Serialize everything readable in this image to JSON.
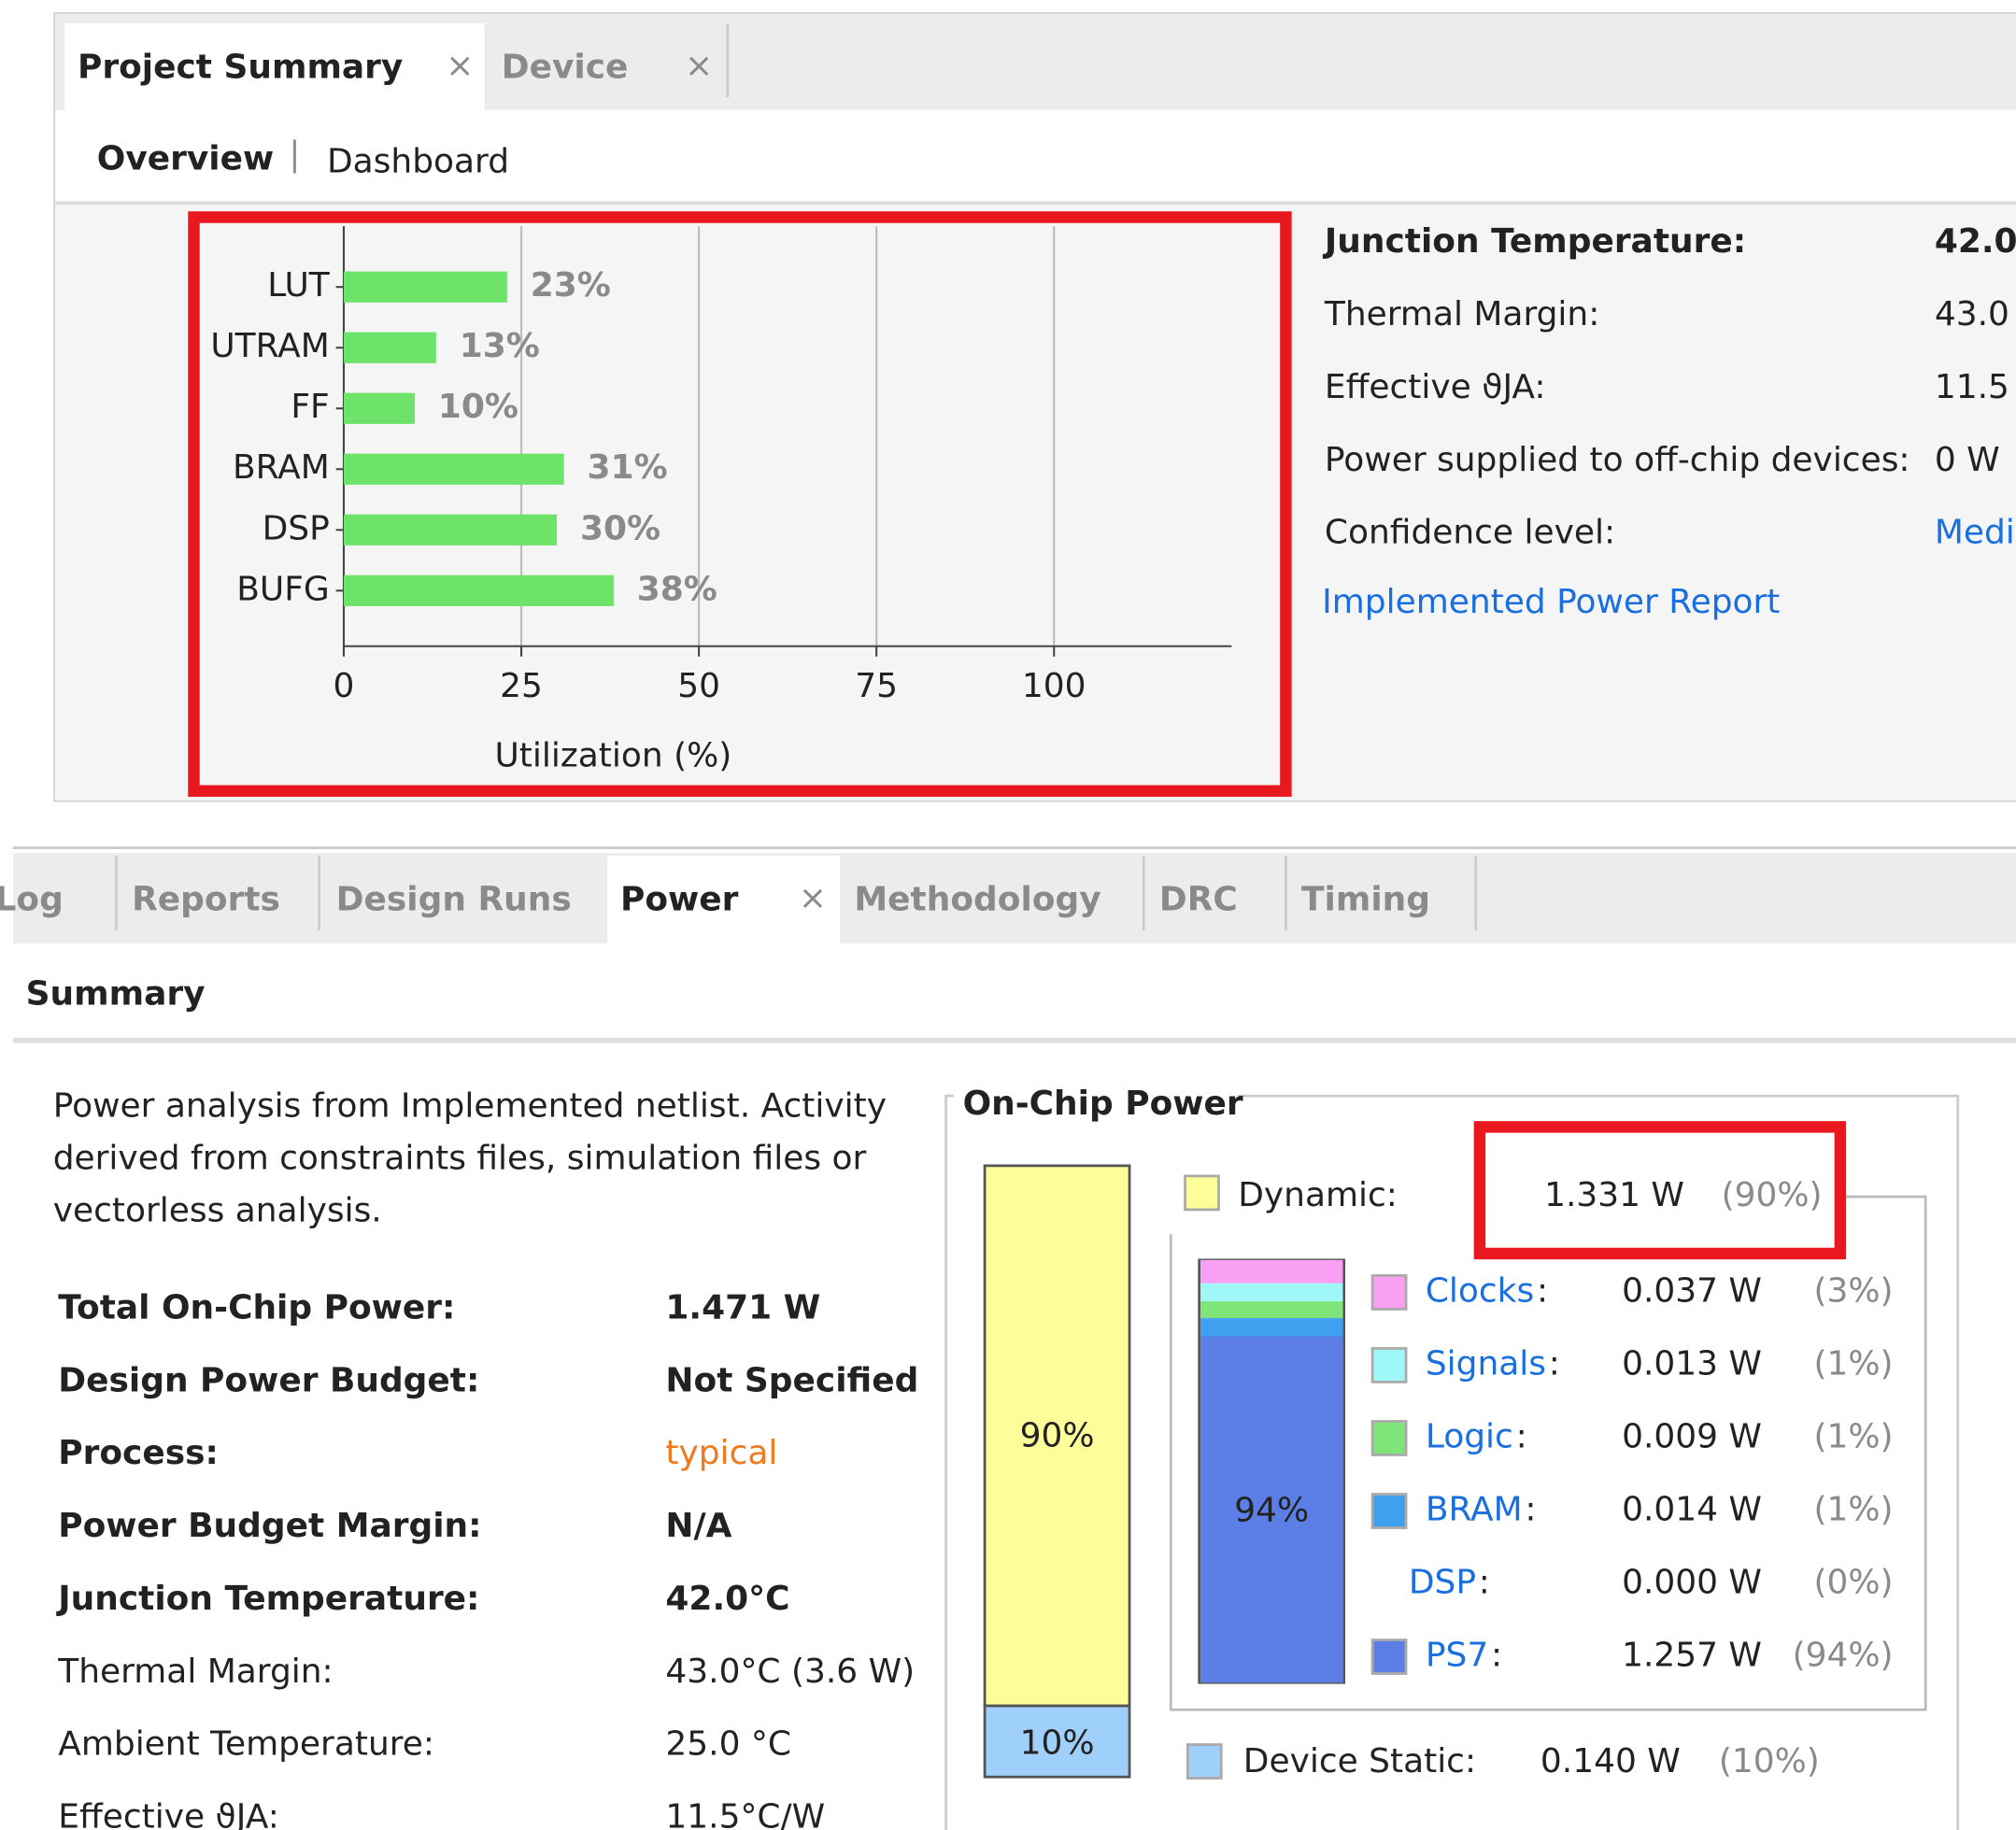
{
  "top_tabs": [
    "Project Summary",
    "Device"
  ],
  "close_icon": "×",
  "sub_tabs": [
    "Overview",
    "Dashboard"
  ],
  "chart_data": {
    "type": "hbar",
    "categories": [
      "LUT",
      "UTRAM",
      "FF",
      "BRAM",
      "DSP",
      "BUFG"
    ],
    "values": [
      23,
      13,
      10,
      31,
      30,
      38
    ],
    "value_labels": [
      "23%",
      "13%",
      "10%",
      "31%",
      "30%",
      "38%"
    ],
    "color": "#6ee36a",
    "xlim": [
      0,
      125
    ],
    "xticks": [
      0,
      25,
      50,
      75,
      100
    ],
    "xlabel": "Utilization (%)",
    "grid": true
  },
  "thermal": {
    "rows": [
      {
        "label": "Junction Temperature:",
        "value": "42.0"
      },
      {
        "label": "Thermal Margin:",
        "value": "43.0"
      },
      {
        "label": "Effective ϑJA:",
        "value": "11.5"
      },
      {
        "label": "Power supplied to off-chip devices:",
        "value": "0 W"
      },
      {
        "label": "Confidence level:",
        "value": "Medi"
      }
    ],
    "link": "Implemented Power Report"
  },
  "bottom_tabs": [
    "Log",
    "Reports",
    "Design Runs",
    "Power",
    "Methodology",
    "DRC",
    "Timing"
  ],
  "summary_heading": "Summary",
  "description": [
    "Power analysis from Implemented netlist. Activity",
    "derived from constraints files, simulation files or",
    "vectorless analysis."
  ],
  "power_rows": [
    {
      "label": "Total On-Chip Power:",
      "value": "1.471 W"
    },
    {
      "label": "Design Power Budget:",
      "value": "Not Specified"
    },
    {
      "label": "Process:",
      "value": "typical"
    },
    {
      "label": "Power Budget Margin:",
      "value": "N/A"
    },
    {
      "label": "Junction Temperature:",
      "value": "42.0°C"
    },
    {
      "label": "Thermal Margin:",
      "value": "43.0°C (3.6 W)"
    },
    {
      "label": "Ambient Temperature:",
      "value": "25.0 °C"
    },
    {
      "label": "Effective ϑJA:",
      "value": "11.5°C/W"
    }
  ],
  "on_chip_power": {
    "title": "On-Chip Power",
    "dynamic_bar_label": "90%",
    "static_bar_label": "10%",
    "ps7_bar_label": "94%",
    "dynamic": {
      "label": "Dynamic:",
      "value": "1.331 W",
      "percent": "(90%)",
      "color": "#fdfd9a"
    },
    "label_suffix": ":",
    "components": [
      {
        "name": "Clocks",
        "value": "0.037 W",
        "percent": "(3%)",
        "color": "#f9a0f5"
      },
      {
        "name": "Signals",
        "value": "0.013 W",
        "percent": "(1%)",
        "color": "#a0f7f7"
      },
      {
        "name": "Logic",
        "value": "0.009 W",
        "percent": "(1%)",
        "color": "#7fe57a"
      },
      {
        "name": "BRAM",
        "value": "0.014 W",
        "percent": "(1%)",
        "color": "#3fa0ef"
      },
      {
        "name": "DSP",
        "value": "0.000 W",
        "percent": "(0%)",
        "color": null
      },
      {
        "name": "PS7",
        "value": "1.257 W",
        "percent": "(94%)",
        "color": "#5b7fe6"
      }
    ],
    "static": {
      "label": "Device Static:",
      "value": "0.140 W",
      "percent": "(10%)",
      "color": "#9fd0fb"
    }
  }
}
